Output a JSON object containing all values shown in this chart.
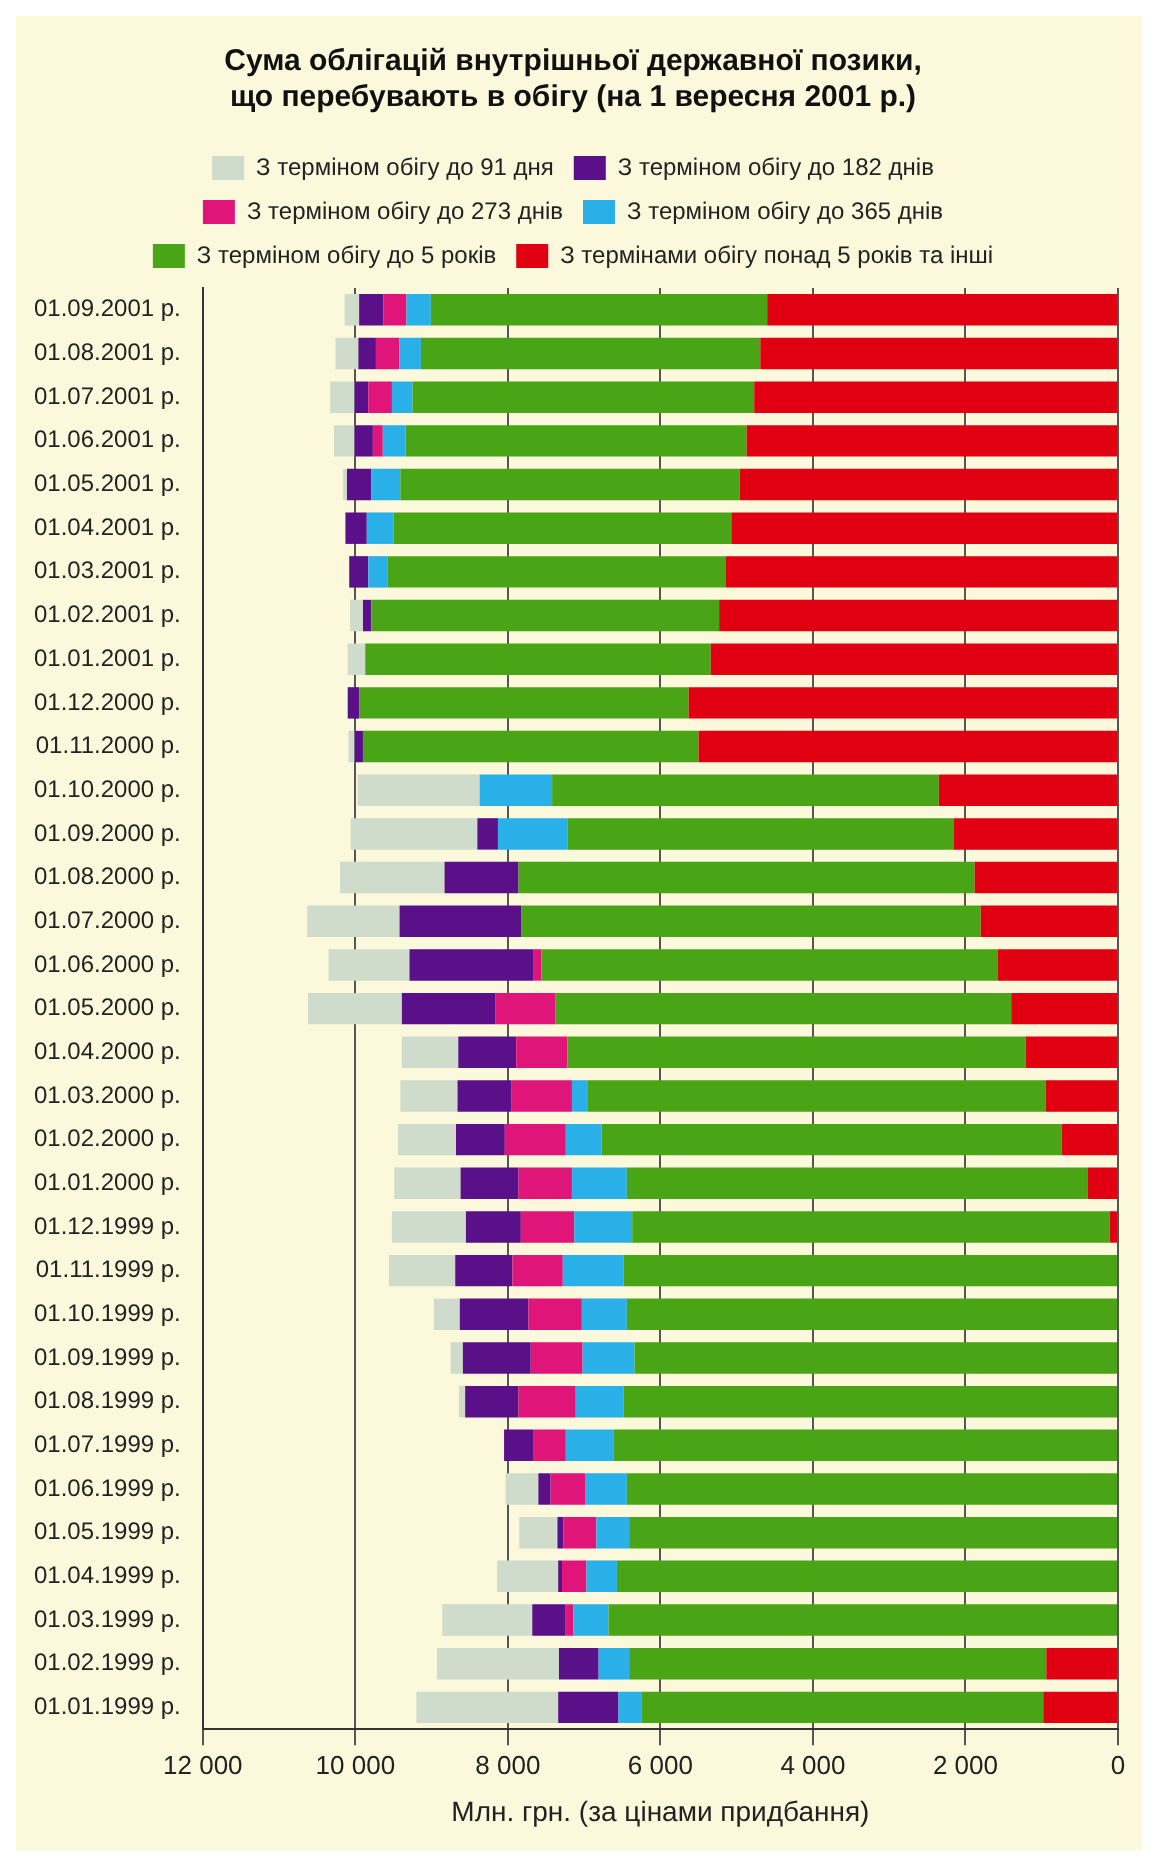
{
  "chart_data": {
    "type": "bar",
    "orientation": "horizontal",
    "stacked": true,
    "title": "Сума облігацій внутрішньої державної позики,\nщо перебувають в обігу (на 1 вересня 2001 р.)",
    "xlabel": "Млн. грн. (за цінами придбання)",
    "categories": [
      "01.09.2001 р.",
      "01.08.2001 р.",
      "01.07.2001 р.",
      "01.06.2001 р.",
      "01.05.2001 р.",
      "01.04.2001 р.",
      "01.03.2001 р.",
      "01.02.2001 р.",
      "01.01.2001 р.",
      "01.12.2000 р.",
      "01.11.2000 р.",
      "01.10.2000 р.",
      "01.09.2000 р.",
      "01.08.2000 р.",
      "01.07.2000 р.",
      "01.06.2000 р.",
      "01.05.2000 р.",
      "01.04.2000 р.",
      "01.03.2000 р.",
      "01.02.2000 р.",
      "01.01.2000 р.",
      "01.12.1999 р.",
      "01.11.1999 р.",
      "01.10.1999 р.",
      "01.09.1999 р.",
      "01.08.1999 р.",
      "01.07.1999 р.",
      "01.06.1999 р.",
      "01.05.1999 р.",
      "01.04.1999 р.",
      "01.03.1999 р.",
      "01.02.1999 р.",
      "01.01.1999 р."
    ],
    "series": [
      {
        "name": "З термінами обігу понад 5 років та інші",
        "color": "#e00012",
        "values": [
          4600,
          4690,
          4770,
          4870,
          4960,
          5070,
          5140,
          5230,
          5340,
          5630,
          5500,
          2350,
          2150,
          1880,
          1800,
          1580,
          1400,
          1210,
          950,
          740,
          400,
          110,
          0,
          0,
          0,
          0,
          0,
          0,
          0,
          0,
          0,
          940,
          980
        ]
      },
      {
        "name": "З терміном обігу до 5 років",
        "color": "#4aa516",
        "values": [
          4410,
          4450,
          4480,
          4470,
          4450,
          4430,
          4440,
          4560,
          4530,
          4320,
          4400,
          5070,
          5070,
          5980,
          6020,
          5980,
          5980,
          6010,
          6000,
          6030,
          6040,
          6260,
          6480,
          6440,
          6340,
          6480,
          6610,
          6440,
          6410,
          6570,
          6680,
          5470,
          5270
        ]
      },
      {
        "name": "З терміном обігу до 365 днів",
        "color": "#29b0e8",
        "values": [
          320,
          280,
          270,
          300,
          380,
          350,
          250,
          0,
          0,
          0,
          0,
          950,
          910,
          0,
          0,
          0,
          0,
          0,
          210,
          470,
          720,
          760,
          800,
          590,
          680,
          630,
          630,
          540,
          430,
          400,
          460,
          400,
          300
        ]
      },
      {
        "name": "З терміном обігу до 273 днів",
        "color": "#e0157a",
        "values": [
          300,
          310,
          310,
          130,
          0,
          0,
          0,
          0,
          0,
          0,
          0,
          0,
          0,
          0,
          0,
          110,
          780,
          670,
          790,
          800,
          700,
          700,
          660,
          700,
          680,
          750,
          430,
          460,
          430,
          320,
          110,
          0,
          0
        ]
      },
      {
        "name": "З терміном обігу до 182 днів",
        "color": "#5a1089",
        "values": [
          320,
          230,
          180,
          240,
          320,
          280,
          250,
          110,
          0,
          150,
          110,
          0,
          270,
          970,
          1600,
          1620,
          1230,
          760,
          710,
          640,
          760,
          720,
          750,
          900,
          890,
          700,
          380,
          160,
          80,
          50,
          430,
          520,
          790
        ]
      },
      {
        "name": "З терміном обігу до 91 дня",
        "color": "#cfdccb",
        "values": [
          190,
          300,
          320,
          270,
          50,
          0,
          0,
          170,
          230,
          0,
          80,
          1600,
          1660,
          1370,
          1210,
          1060,
          1230,
          740,
          750,
          760,
          870,
          970,
          870,
          340,
          160,
          80,
          0,
          430,
          500,
          800,
          1180,
          1600,
          1860
        ]
      }
    ],
    "xlim": [
      12000,
      0
    ],
    "xticks": [
      {
        "value": 12000,
        "label": "12 000"
      },
      {
        "value": 10000,
        "label": "10 000"
      },
      {
        "value": 8000,
        "label": "8 000"
      },
      {
        "value": 6000,
        "label": "6 000"
      },
      {
        "value": 4000,
        "label": "4 000"
      },
      {
        "value": 2000,
        "label": "2 000"
      },
      0
    ],
    "grid": "x",
    "legend": "top"
  }
}
